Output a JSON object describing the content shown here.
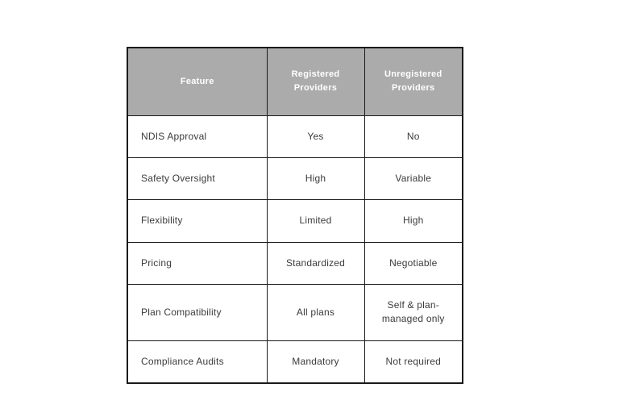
{
  "table": {
    "columns": [
      "Feature",
      "Registered Providers",
      "Unregistered Providers"
    ],
    "rows": [
      {
        "feature": "NDIS Approval",
        "registered": "Yes",
        "unregistered": "No"
      },
      {
        "feature": "Safety Oversight",
        "registered": "High",
        "unregistered": "Variable"
      },
      {
        "feature": "Flexibility",
        "registered": "Limited",
        "unregistered": "High"
      },
      {
        "feature": "Pricing",
        "registered": "Standardized",
        "unregistered": "Negotiable"
      },
      {
        "feature": "Plan Compatibility",
        "registered": "All plans",
        "unregistered": "Self & plan-managed only"
      },
      {
        "feature": "Compliance Audits",
        "registered": "Mandatory",
        "unregistered": "Not required"
      }
    ]
  },
  "colors": {
    "header_bg": "#ababab",
    "header_text": "#ffffff",
    "border": "#1a1a1a",
    "body_text": "#3b3b3b",
    "page_bg": "#ffffff"
  }
}
